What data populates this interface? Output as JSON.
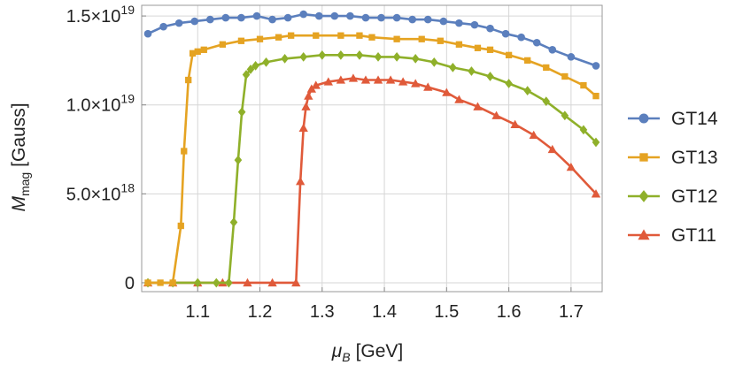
{
  "chart_data": {
    "type": "line",
    "xlabel_symbol": "μ",
    "xlabel_sub": "B",
    "xlabel_unit": "[GeV]",
    "ylabel_symbol": "M",
    "ylabel_sub": "mag",
    "ylabel_unit": "[Gauss]",
    "xlim": [
      1.01,
      1.75
    ],
    "ylim": [
      -5e+17,
      1.56e+19
    ],
    "x_ticks": [
      {
        "value": 1.1,
        "label": "1.1"
      },
      {
        "value": 1.2,
        "label": "1.2"
      },
      {
        "value": 1.3,
        "label": "1.3"
      },
      {
        "value": 1.4,
        "label": "1.4"
      },
      {
        "value": 1.5,
        "label": "1.5"
      },
      {
        "value": 1.6,
        "label": "1.6"
      },
      {
        "value": 1.7,
        "label": "1.7"
      }
    ],
    "y_ticks": [
      {
        "value": 0,
        "mantissa": "0",
        "exponent": ""
      },
      {
        "value": 5e+18,
        "mantissa": "5.0×10",
        "exponent": "18"
      },
      {
        "value": 1e+19,
        "mantissa": "1.0×10",
        "exponent": "19"
      },
      {
        "value": 1.5e+19,
        "mantissa": "1.5×10",
        "exponent": "19"
      }
    ],
    "grid": true,
    "legend_position": "right",
    "series": [
      {
        "name": "GT14",
        "color": "#5b7fbd",
        "marker": "circle",
        "points": [
          [
            1.02,
            1.4e+19
          ],
          [
            1.045,
            1.44e+19
          ],
          [
            1.07,
            1.46e+19
          ],
          [
            1.095,
            1.47e+19
          ],
          [
            1.12,
            1.48e+19
          ],
          [
            1.145,
            1.49e+19
          ],
          [
            1.17,
            1.49e+19
          ],
          [
            1.195,
            1.5e+19
          ],
          [
            1.22,
            1.48e+19
          ],
          [
            1.245,
            1.49e+19
          ],
          [
            1.27,
            1.51e+19
          ],
          [
            1.295,
            1.5e+19
          ],
          [
            1.32,
            1.5e+19
          ],
          [
            1.345,
            1.5e+19
          ],
          [
            1.37,
            1.49e+19
          ],
          [
            1.395,
            1.49e+19
          ],
          [
            1.42,
            1.49e+19
          ],
          [
            1.445,
            1.48e+19
          ],
          [
            1.47,
            1.48e+19
          ],
          [
            1.495,
            1.47e+19
          ],
          [
            1.52,
            1.46e+19
          ],
          [
            1.545,
            1.45e+19
          ],
          [
            1.57,
            1.43e+19
          ],
          [
            1.595,
            1.4e+19
          ],
          [
            1.62,
            1.38e+19
          ],
          [
            1.645,
            1.35e+19
          ],
          [
            1.67,
            1.31e+19
          ],
          [
            1.7,
            1.27e+19
          ],
          [
            1.74,
            1.22e+19
          ]
        ]
      },
      {
        "name": "GT13",
        "color": "#e5a322",
        "marker": "square",
        "points": [
          [
            1.02,
            0.0
          ],
          [
            1.04,
            0.0
          ],
          [
            1.06,
            0.0
          ],
          [
            1.073,
            3.2e+18
          ],
          [
            1.078,
            7.4e+18
          ],
          [
            1.085,
            1.14e+19
          ],
          [
            1.092,
            1.29e+19
          ],
          [
            1.1,
            1.3e+19
          ],
          [
            1.11,
            1.31e+19
          ],
          [
            1.14,
            1.34e+19
          ],
          [
            1.17,
            1.36e+19
          ],
          [
            1.2,
            1.37e+19
          ],
          [
            1.23,
            1.38e+19
          ],
          [
            1.25,
            1.39e+19
          ],
          [
            1.29,
            1.39e+19
          ],
          [
            1.33,
            1.39e+19
          ],
          [
            1.36,
            1.39e+19
          ],
          [
            1.38,
            1.38e+19
          ],
          [
            1.42,
            1.37e+19
          ],
          [
            1.46,
            1.37e+19
          ],
          [
            1.49,
            1.36e+19
          ],
          [
            1.52,
            1.34e+19
          ],
          [
            1.55,
            1.32e+19
          ],
          [
            1.57,
            1.31e+19
          ],
          [
            1.6,
            1.28e+19
          ],
          [
            1.63,
            1.25e+19
          ],
          [
            1.66,
            1.21e+19
          ],
          [
            1.69,
            1.16e+19
          ],
          [
            1.72,
            1.11e+19
          ],
          [
            1.74,
            1.05e+19
          ]
        ]
      },
      {
        "name": "GT12",
        "color": "#8fb02a",
        "marker": "diamond",
        "points": [
          [
            1.02,
            0.0
          ],
          [
            1.06,
            0.0
          ],
          [
            1.1,
            0.0
          ],
          [
            1.13,
            0.0
          ],
          [
            1.15,
            0.0
          ],
          [
            1.158,
            3.4e+18
          ],
          [
            1.165,
            6.9e+18
          ],
          [
            1.171,
            9.6e+18
          ],
          [
            1.178,
            1.17e+19
          ],
          [
            1.185,
            1.2e+19
          ],
          [
            1.193,
            1.22e+19
          ],
          [
            1.21,
            1.24e+19
          ],
          [
            1.24,
            1.26e+19
          ],
          [
            1.27,
            1.27e+19
          ],
          [
            1.3,
            1.28e+19
          ],
          [
            1.33,
            1.28e+19
          ],
          [
            1.36,
            1.28e+19
          ],
          [
            1.39,
            1.27e+19
          ],
          [
            1.42,
            1.27e+19
          ],
          [
            1.45,
            1.26e+19
          ],
          [
            1.48,
            1.24e+19
          ],
          [
            1.51,
            1.21e+19
          ],
          [
            1.54,
            1.19e+19
          ],
          [
            1.57,
            1.16e+19
          ],
          [
            1.6,
            1.12e+19
          ],
          [
            1.63,
            1.08e+19
          ],
          [
            1.66,
            1.02e+19
          ],
          [
            1.69,
            9.4e+18
          ],
          [
            1.72,
            8.6e+18
          ],
          [
            1.74,
            7.9e+18
          ]
        ]
      },
      {
        "name": "GT11",
        "color": "#e05a3a",
        "marker": "triangle",
        "points": [
          [
            1.02,
            0.0
          ],
          [
            1.06,
            0.0
          ],
          [
            1.1,
            0.0
          ],
          [
            1.14,
            0.0
          ],
          [
            1.18,
            0.0
          ],
          [
            1.22,
            0.0
          ],
          [
            1.258,
            0.0
          ],
          [
            1.265,
            5.7e+18
          ],
          [
            1.27,
            8.7e+18
          ],
          [
            1.274,
            9.9e+18
          ],
          [
            1.278,
            1.05e+19
          ],
          [
            1.283,
            1.09e+19
          ],
          [
            1.29,
            1.11e+19
          ],
          [
            1.31,
            1.13e+19
          ],
          [
            1.33,
            1.14e+19
          ],
          [
            1.35,
            1.15e+19
          ],
          [
            1.37,
            1.14e+19
          ],
          [
            1.39,
            1.14e+19
          ],
          [
            1.41,
            1.14e+19
          ],
          [
            1.43,
            1.13e+19
          ],
          [
            1.45,
            1.12e+19
          ],
          [
            1.47,
            1.1e+19
          ],
          [
            1.5,
            1.07e+19
          ],
          [
            1.52,
            1.03e+19
          ],
          [
            1.55,
            9.9e+18
          ],
          [
            1.58,
            9.4e+18
          ],
          [
            1.61,
            8.9e+18
          ],
          [
            1.64,
            8.3e+18
          ],
          [
            1.67,
            7.5e+18
          ],
          [
            1.7,
            6.5e+18
          ],
          [
            1.74,
            5e+18
          ]
        ]
      }
    ]
  }
}
